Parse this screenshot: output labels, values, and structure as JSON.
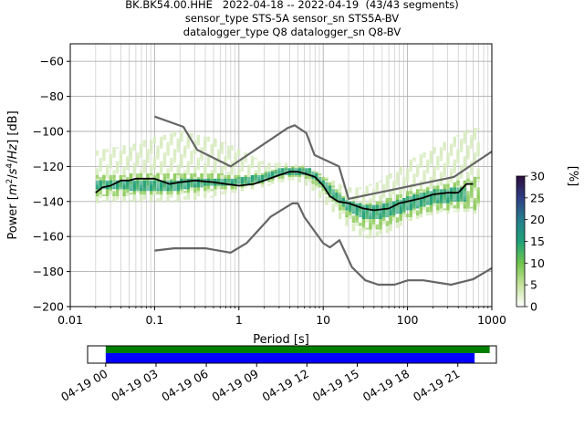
{
  "title_lines": [
    "BK.BK54.00.HHE   2022-04-18 -- 2022-04-19  (43/43 segments)",
    "sensor_type STS-5A sensor_sn STS5A-BV",
    "datalogger_type Q8 datalogger_sn Q8-BV"
  ],
  "chart_data": [
    {
      "type": "heatmap",
      "name": "ppsd",
      "xlabel": "Period [s]",
      "ylabel": "Power [m²/s⁴/Hz] [dB]",
      "xscale": "log",
      "xlim": [
        0.01,
        1000
      ],
      "ylim": [
        -200,
        -50
      ],
      "x_ticks": [
        0.01,
        0.1,
        1,
        10,
        100,
        1000
      ],
      "x_tick_labels": [
        "0.01",
        "0.1",
        "1",
        "10",
        "100",
        "1000"
      ],
      "y_ticks": [
        -200,
        -180,
        -160,
        -140,
        -120,
        -100,
        -80,
        -60
      ],
      "y_tick_labels": [
        "−200",
        "−180",
        "−160",
        "−140",
        "−120",
        "−100",
        "−80",
        "−60"
      ],
      "grid": true,
      "colorbar": {
        "label": "[%]",
        "range": [
          0,
          30
        ],
        "ticks": [
          0,
          5,
          10,
          15,
          20,
          25,
          30
        ],
        "tick_labels": [
          "0",
          "5",
          "10",
          "15",
          "20",
          "25",
          "30"
        ]
      },
      "series": [
        {
          "role": "noise-model-high",
          "color": "#666666",
          "x": [
            0.1,
            0.22,
            0.32,
            0.8,
            3.8,
            4.6,
            6.3,
            7.9,
            15.4,
            20,
            354.8,
            1000
          ],
          "y": [
            -91.5,
            -97.4,
            -110.5,
            -120,
            -98,
            -96.5,
            -101,
            -113.5,
            -120,
            -138.5,
            -126,
            -111.5
          ]
        },
        {
          "role": "noise-model-low",
          "color": "#666666",
          "x": [
            0.1,
            0.17,
            0.4,
            0.8,
            1.24,
            2.4,
            4.3,
            5,
            6,
            10,
            12,
            15.6,
            21.9,
            31.6,
            45,
            70,
            101,
            154,
            328,
            600,
            1000
          ],
          "y": [
            -168,
            -166.7,
            -166.7,
            -169.2,
            -163.7,
            -148.6,
            -141.1,
            -141.1,
            -149,
            -163.8,
            -166.2,
            -162.1,
            -177.5,
            -185,
            -187.5,
            -187.5,
            -185,
            -185,
            -187.5,
            -184.4,
            -178
          ]
        },
        {
          "role": "mean",
          "color": "#000000",
          "x": [
            0.02,
            0.024,
            0.03,
            0.04,
            0.05,
            0.06,
            0.08,
            0.1,
            0.15,
            0.2,
            0.3,
            0.5,
            0.7,
            1,
            1.5,
            2,
            3,
            4,
            5,
            6,
            8,
            10,
            12,
            15,
            20,
            30,
            40,
            60,
            80,
            100,
            150,
            200,
            300,
            400,
            500,
            600
          ],
          "y": [
            -135,
            -132,
            -131,
            -128,
            -128,
            -127,
            -127,
            -127,
            -130,
            -129,
            -128,
            -129,
            -130,
            -131,
            -130,
            -128,
            -125,
            -123,
            -123,
            -124,
            -126,
            -131,
            -137,
            -140,
            -141,
            -144,
            -145,
            -144,
            -141,
            -140,
            -138,
            -136,
            -135,
            -135,
            -130,
            -130
          ]
        }
      ],
      "density_bands": [
        {
          "x": [
            0.02,
            0.03,
            0.05,
            0.1,
            0.2,
            0.5,
            1,
            2,
            4,
            6,
            10,
            15,
            20,
            30,
            50,
            100,
            200,
            500,
            700
          ],
          "y_min": [
            -142,
            -140,
            -140,
            -140,
            -140,
            -138,
            -135,
            -132,
            -128,
            -130,
            -140,
            -150,
            -155,
            -162,
            -160,
            -152,
            -148,
            -146,
            -148
          ],
          "y_max": [
            -112,
            -110,
            -108,
            -104,
            -100,
            -104,
            -110,
            -118,
            -119,
            -120,
            -125,
            -130,
            -132,
            -132,
            -128,
            -118,
            -110,
            -100,
            -98
          ]
        },
        {
          "x": [
            0.02,
            0.05,
            0.1,
            0.2,
            0.5,
            1,
            2,
            4,
            6,
            10,
            15,
            20,
            30,
            50,
            100,
            200,
            500,
            700
          ],
          "y_min": [
            -138,
            -137,
            -136,
            -136,
            -134,
            -133,
            -130,
            -126,
            -127,
            -134,
            -144,
            -150,
            -156,
            -156,
            -150,
            -146,
            -144,
            -146
          ],
          "y_max": [
            -126,
            -125,
            -124,
            -124,
            -124,
            -126,
            -124,
            -120,
            -120,
            -126,
            -134,
            -140,
            -142,
            -140,
            -135,
            -132,
            -128,
            -126
          ]
        },
        {
          "x": [
            0.02,
            0.05,
            0.1,
            0.2,
            0.5,
            1,
            2,
            3,
            5,
            7,
            10,
            15,
            20,
            30,
            50,
            100,
            200,
            500
          ],
          "y_min": [
            -133,
            -134,
            -134,
            -134,
            -131,
            -131,
            -129,
            -126,
            -125,
            -126,
            -132,
            -141,
            -146,
            -150,
            -150,
            -146,
            -142,
            -140
          ],
          "y_max": [
            -128,
            -129,
            -128,
            -128,
            -127,
            -127,
            -125,
            -122,
            -121,
            -122,
            -128,
            -136,
            -140,
            -142,
            -142,
            -138,
            -134,
            -132
          ]
        }
      ]
    },
    {
      "type": "timeline",
      "name": "data-coverage",
      "tick_labels": [
        "04-19 00",
        "04-19 03",
        "04-19 06",
        "04-19 09",
        "04-19 12",
        "04-19 15",
        "04-19 18",
        "04-19 21"
      ],
      "tick_hours": [
        0,
        3,
        6,
        9,
        12,
        15,
        18,
        21
      ],
      "range_hours": [
        -1.08,
        23.3
      ],
      "bars": [
        {
          "role": "ppsd-coverage",
          "color": "#008000",
          "start_hour": 0,
          "end_hour": 22.9
        },
        {
          "role": "data-coverage",
          "color": "#0000ff",
          "start_hour": 0,
          "end_hour": 22.0
        }
      ]
    }
  ]
}
